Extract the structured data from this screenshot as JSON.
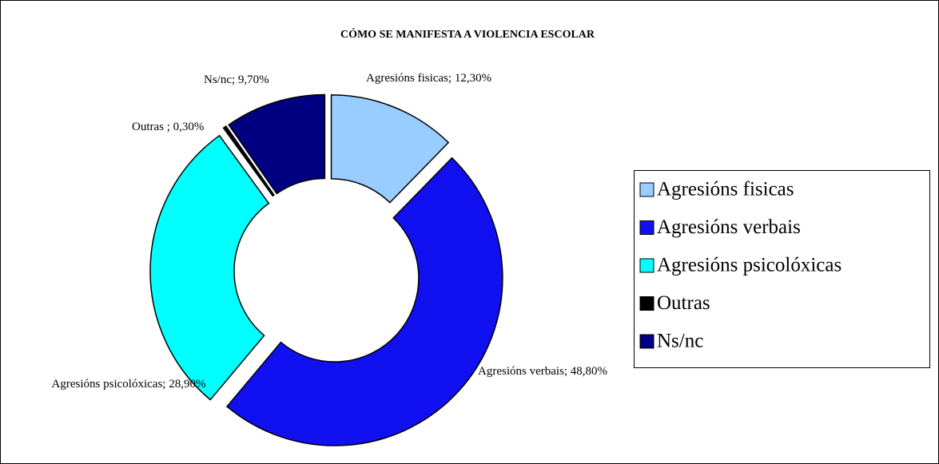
{
  "chart_data": {
    "type": "donut",
    "title": "CÓMO SE MANIFESTA A VIOLENCIA ESCOLAR",
    "categories": [
      "Agresións fisicas",
      "Agresións verbais",
      "Agresións psicolóxicas",
      "Outras",
      "Ns/nc"
    ],
    "values": [
      12.3,
      48.8,
      28.9,
      0.3,
      9.7
    ],
    "value_labels": [
      "Agresións fisicas; 12,30%",
      "Agresións verbais; 48,80%",
      "Agresións psicolóxicas; 28,90%",
      "Outras ; 0,30%",
      "Ns/nc; 9,70%"
    ],
    "colors": [
      "#99ccff",
      "#1010f0",
      "#00ffff",
      "#000000",
      "#000080"
    ],
    "legend": "right"
  }
}
